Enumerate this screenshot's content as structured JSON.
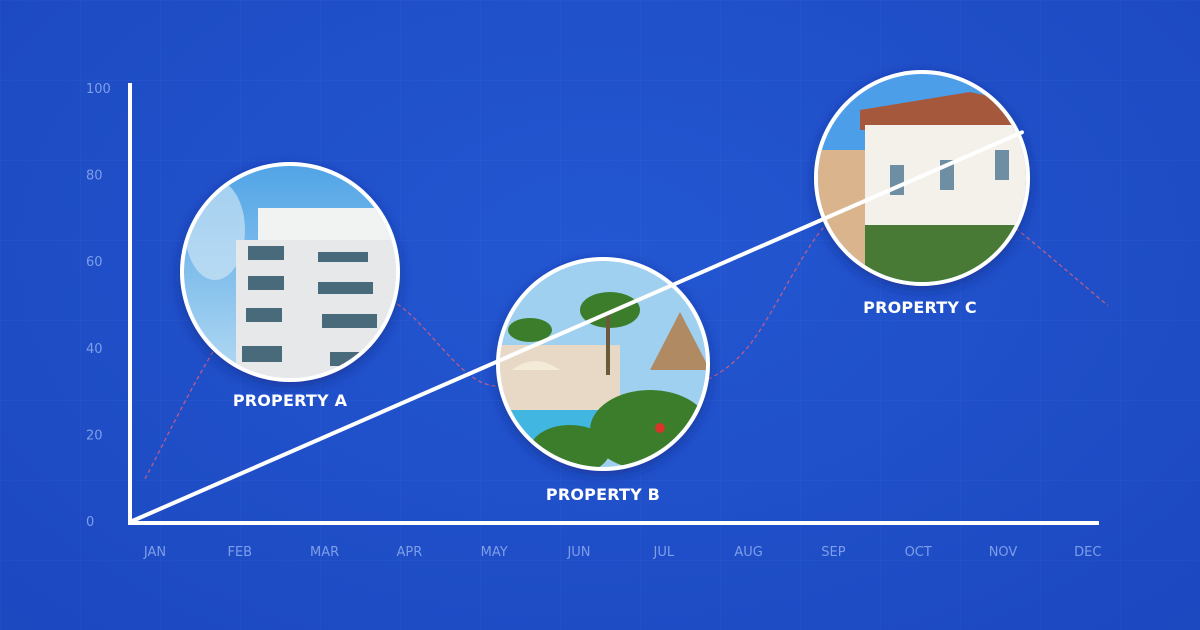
{
  "chart_data": {
    "type": "line",
    "categories": [
      "JAN",
      "FEB",
      "MAR",
      "APR",
      "MAY",
      "JUN",
      "JUL",
      "AUG",
      "SEP",
      "OCT",
      "NOV",
      "DEC"
    ],
    "yticks": [
      0,
      20,
      40,
      60,
      80,
      100
    ],
    "ylim": [
      0,
      100
    ],
    "grid": true,
    "series": [
      {
        "style": "solid-white",
        "x": [
          "JAN",
          "NOV"
        ],
        "values": [
          0,
          90
        ]
      },
      {
        "style": "dashed-red",
        "values": [
          10,
          45,
          60,
          50,
          32,
          35,
          30,
          38,
          68,
          85,
          72,
          50
        ]
      }
    ],
    "annotations": [
      {
        "label": "PROPERTY A",
        "month": "MAR",
        "value": 57,
        "image": "white apartment tower against blue sky"
      },
      {
        "label": "PROPERTY B",
        "month": "JUN",
        "value": 37,
        "image": "tropical pool with palm trees and thatched hut"
      },
      {
        "label": "PROPERTY C",
        "month": "OCT",
        "value": 80,
        "image": "colonial villa with balconies and hanging plants"
      }
    ],
    "colors": {
      "background": "#1f4fca",
      "axis": "#ffffff",
      "tick": "#7f9ee8",
      "curve": "#e0607a"
    }
  }
}
